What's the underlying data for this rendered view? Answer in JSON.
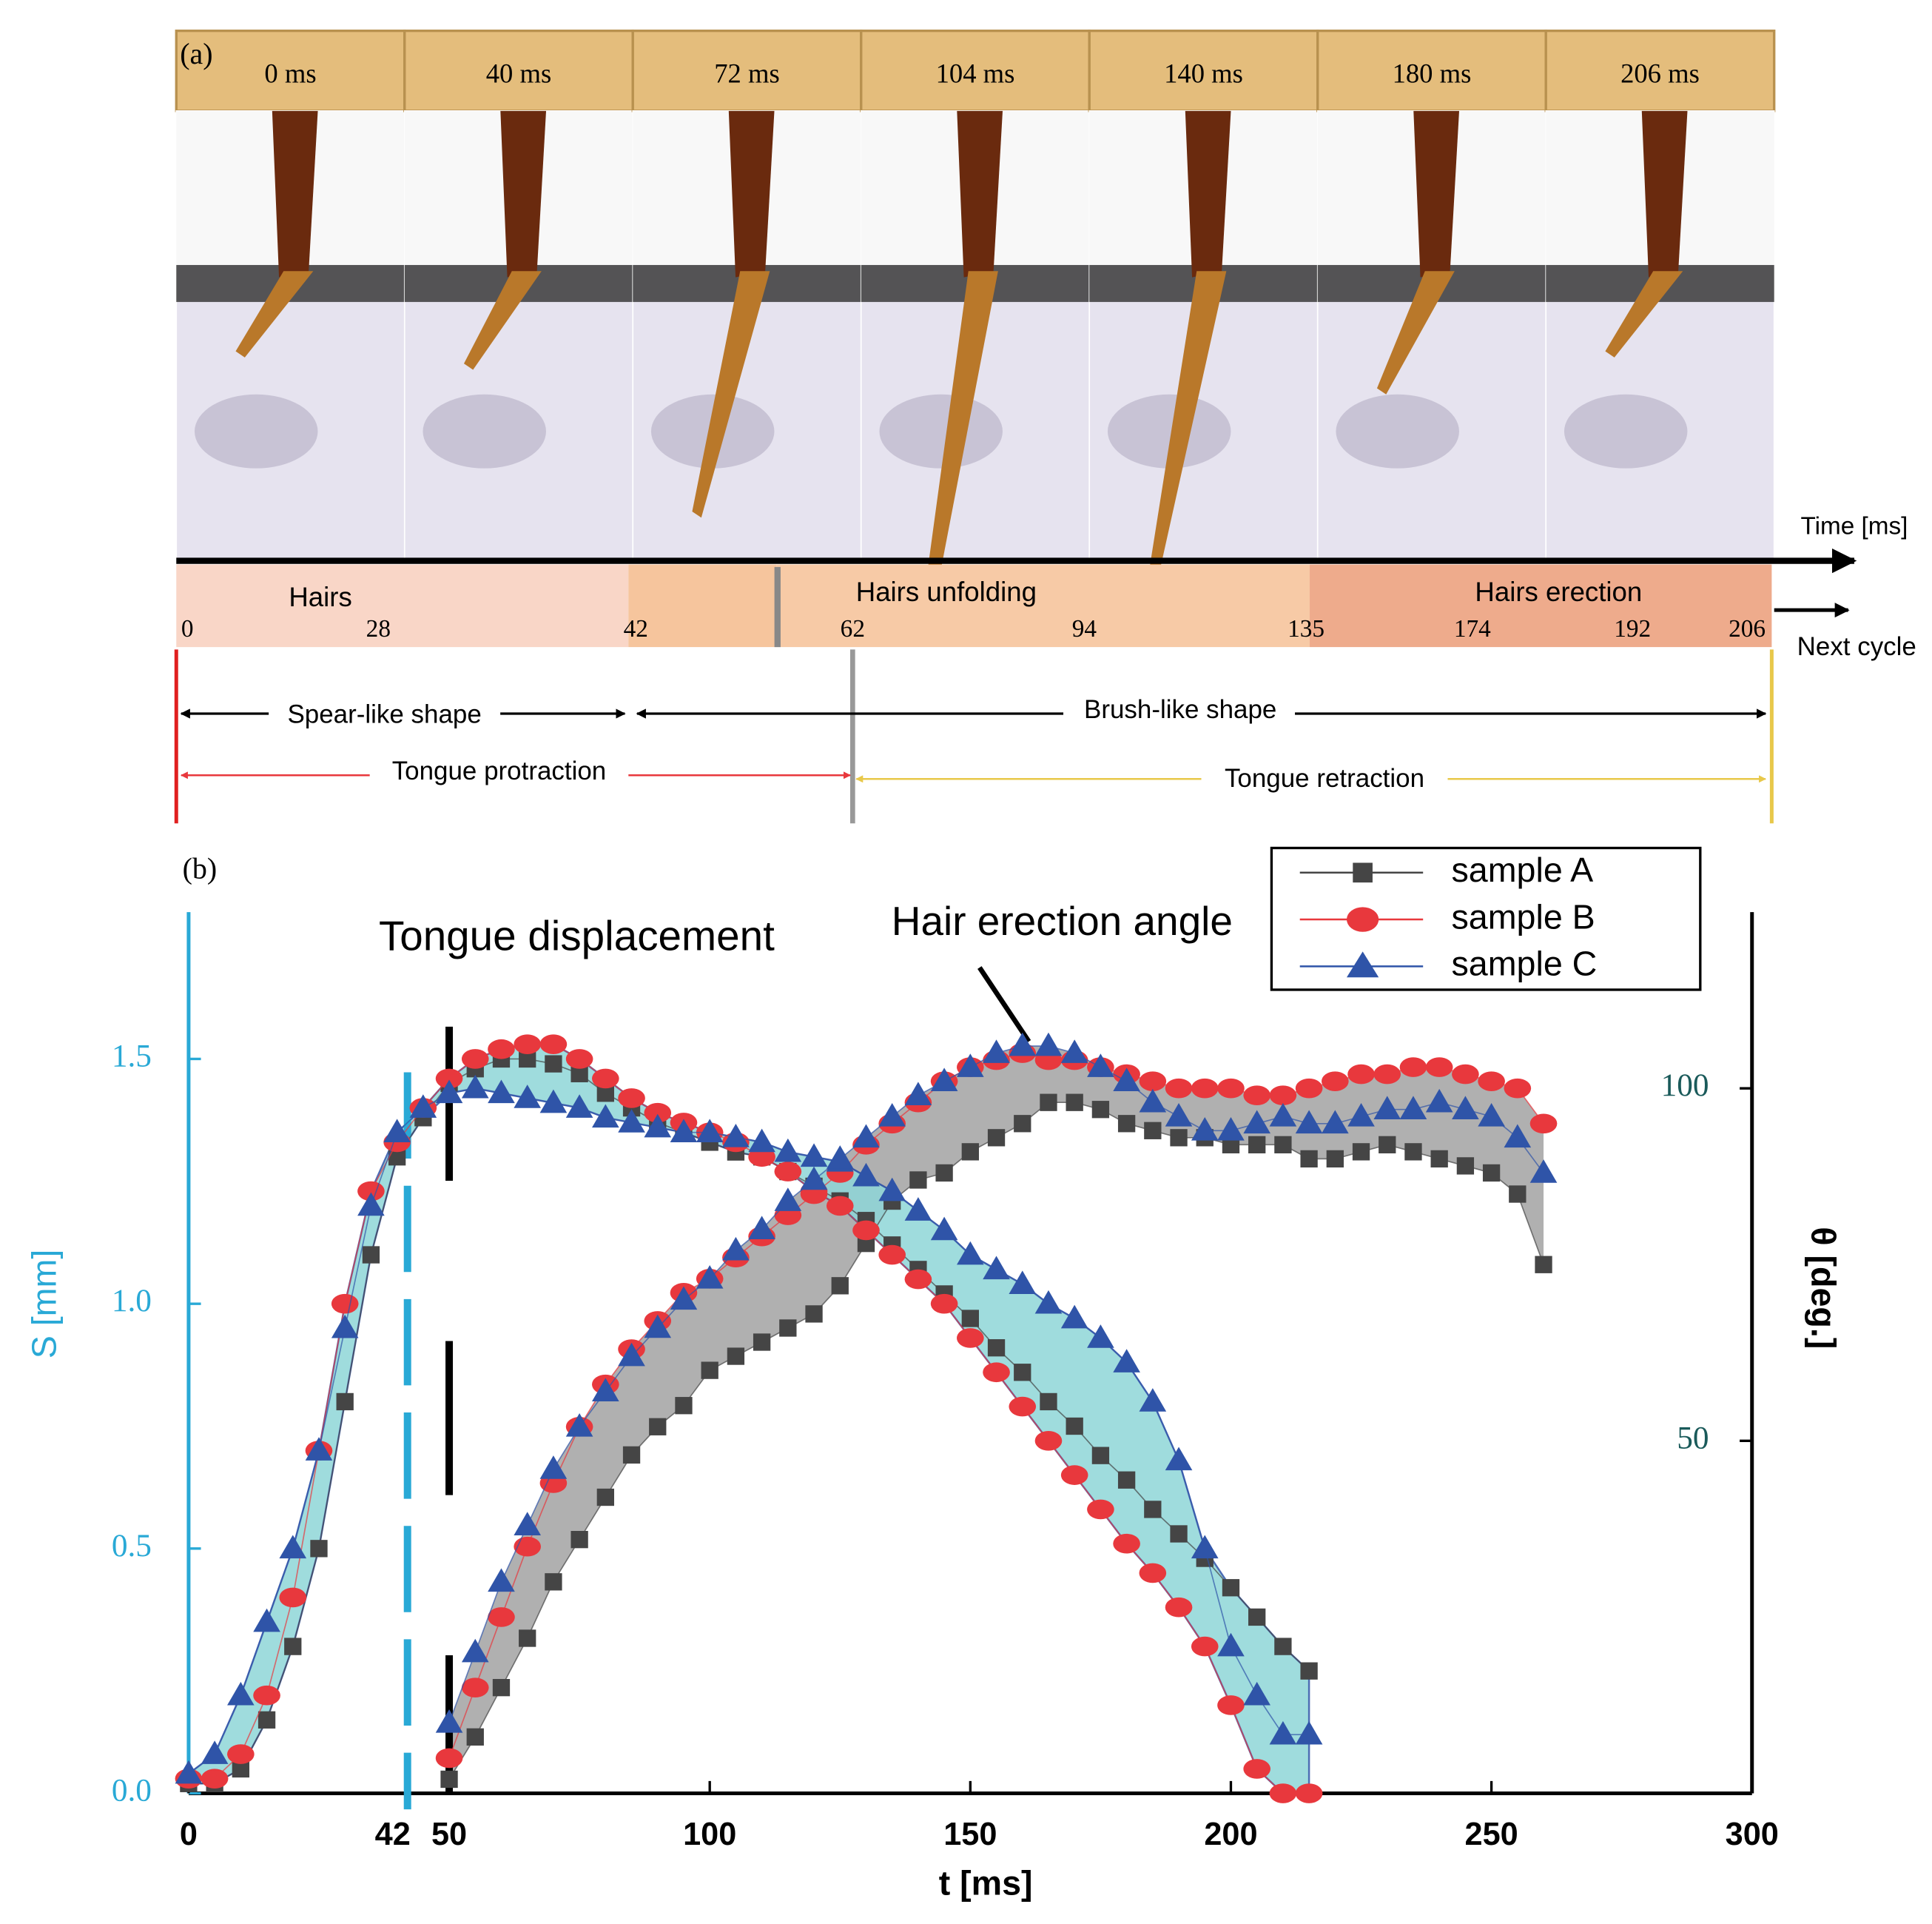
{
  "panel_a": {
    "label": "(a)",
    "frames": [
      "0 ms",
      "40 ms",
      "72 ms",
      "104 ms",
      "140 ms",
      "180 ms",
      "206 ms"
    ],
    "time_axis_label": "Time [ms]",
    "next_cycle": "Next cycle",
    "phases": [
      "Hairs",
      "Hairs unfolding",
      "Hairs erection"
    ],
    "timeline_ticks": [
      0,
      28,
      42,
      62,
      94,
      135,
      174,
      192,
      206
    ],
    "shapes": [
      "Spear-like shape",
      "Brush-like shape"
    ],
    "motions": [
      "Tongue protraction",
      "Tongue retraction"
    ]
  },
  "chart_data": {
    "type": "scatter",
    "label": "(b)",
    "xlabel": "t [ms]",
    "ylabel": "S [mm]",
    "y2label": "θ [deg.]",
    "annotations": [
      "Tongue displacement",
      "Hair erection angle"
    ],
    "xlim": [
      0,
      300
    ],
    "xticks": [
      0,
      42,
      50,
      100,
      150,
      200,
      250,
      300
    ],
    "ylim": [
      0,
      1.8
    ],
    "yticks": [
      {
        "value": 0,
        "label": "0.0"
      },
      0.5,
      {
        "value": 1,
        "label": "1.0"
      },
      1.5
    ],
    "y2lim": [
      0,
      125
    ],
    "y2ticks": [
      50,
      100
    ],
    "x": [
      0,
      5,
      10,
      15,
      20,
      25,
      30,
      35,
      40,
      45,
      50,
      55,
      60,
      65,
      70,
      75,
      80,
      85,
      90,
      95,
      100,
      105,
      110,
      115,
      120,
      125,
      130,
      135,
      140,
      145,
      150,
      155,
      160,
      165,
      170,
      175,
      180,
      185,
      190,
      195,
      200,
      205,
      210,
      215
    ],
    "angle_x": [
      50,
      55,
      60,
      65,
      70,
      75,
      80,
      85,
      90,
      95,
      100,
      105,
      110,
      115,
      120,
      125,
      130,
      135,
      140,
      145,
      150,
      155,
      160,
      165,
      170,
      175,
      180,
      185,
      190,
      195,
      200,
      205,
      210,
      215,
      220,
      225,
      230,
      235,
      240,
      245,
      250,
      255,
      260
    ],
    "series": [
      {
        "name": "sample A",
        "color": "#454545",
        "marker": "square",
        "values": [
          0.02,
          0.02,
          0.05,
          0.15,
          0.3,
          0.5,
          0.8,
          1.1,
          1.3,
          1.38,
          1.45,
          1.48,
          1.5,
          1.5,
          1.49,
          1.47,
          1.43,
          1.4,
          1.37,
          1.35,
          1.33,
          1.31,
          1.3,
          1.27,
          1.24,
          1.21,
          1.17,
          1.12,
          1.07,
          1.02,
          0.97,
          0.91,
          0.86,
          0.8,
          0.75,
          0.69,
          0.64,
          0.58,
          0.53,
          0.48,
          0.42,
          0.36,
          0.3,
          0.25
        ],
        "angle_values": [
          2,
          8,
          15,
          22,
          30,
          36,
          42,
          48,
          52,
          55,
          60,
          62,
          64,
          66,
          68,
          72,
          78,
          84,
          87,
          88,
          91,
          93,
          95,
          98,
          98,
          97,
          95,
          94,
          93,
          93,
          92,
          92,
          92,
          90,
          90,
          91,
          92,
          91,
          90,
          89,
          88,
          85,
          75
        ]
      },
      {
        "name": "sample B",
        "color": "#e8383d",
        "marker": "circle",
        "values": [
          0.03,
          0.03,
          0.08,
          0.2,
          0.4,
          0.7,
          1.0,
          1.23,
          1.33,
          1.4,
          1.46,
          1.5,
          1.52,
          1.53,
          1.53,
          1.5,
          1.46,
          1.42,
          1.39,
          1.37,
          1.35,
          1.33,
          1.3,
          1.27,
          1.23,
          1.2,
          1.15,
          1.1,
          1.05,
          1.0,
          0.93,
          0.86,
          0.79,
          0.72,
          0.65,
          0.58,
          0.51,
          0.45,
          0.38,
          0.3,
          0.18,
          0.05,
          0.0,
          0.0
        ],
        "angle_values": [
          5,
          15,
          25,
          35,
          44,
          52,
          58,
          63,
          67,
          71,
          73,
          76,
          79,
          82,
          85,
          88,
          92,
          95,
          98,
          101,
          103,
          104,
          105,
          104,
          104,
          103,
          102,
          101,
          100,
          100,
          100,
          99,
          99,
          100,
          101,
          102,
          102,
          103,
          103,
          102,
          101,
          100,
          95
        ]
      },
      {
        "name": "sample C",
        "color": "#2f54a8",
        "marker": "triangle",
        "values": [
          0.04,
          0.08,
          0.2,
          0.35,
          0.5,
          0.7,
          0.95,
          1.2,
          1.35,
          1.4,
          1.43,
          1.44,
          1.43,
          1.42,
          1.41,
          1.4,
          1.38,
          1.37,
          1.36,
          1.35,
          1.35,
          1.34,
          1.33,
          1.31,
          1.3,
          1.29,
          1.26,
          1.23,
          1.19,
          1.15,
          1.1,
          1.07,
          1.04,
          1.0,
          0.97,
          0.93,
          0.88,
          0.8,
          0.68,
          0.5,
          0.3,
          0.2,
          0.12,
          0.12
        ],
        "angle_values": [
          10,
          20,
          30,
          38,
          46,
          52,
          57,
          62,
          66,
          70,
          73,
          77,
          80,
          84,
          87,
          90,
          93,
          96,
          99,
          101,
          103,
          105,
          106,
          106,
          105,
          103,
          101,
          98,
          96,
          94,
          94,
          95,
          96,
          95,
          95,
          96,
          97,
          97,
          98,
          97,
          96,
          93,
          88
        ]
      }
    ]
  }
}
